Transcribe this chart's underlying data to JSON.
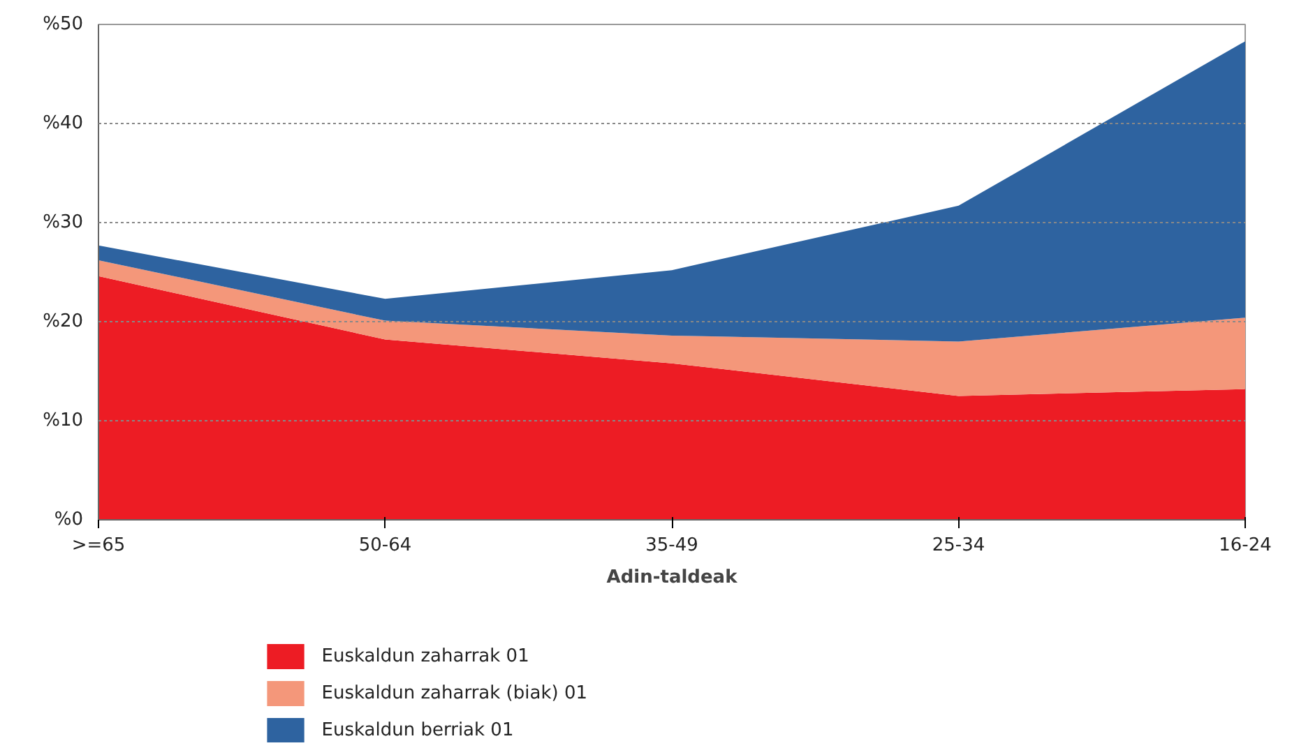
{
  "chart_data": {
    "type": "area",
    "stacked": true,
    "xlabel": "Adin-taldeak",
    "categories": [
      ">=65",
      "50-64",
      "35-49",
      "25-34",
      "16-24"
    ],
    "ylim": [
      0,
      50
    ],
    "yticks": [
      {
        "value": 0,
        "label": "%0"
      },
      {
        "value": 10,
        "label": "%10"
      },
      {
        "value": 20,
        "label": "%20"
      },
      {
        "value": 30,
        "label": "%30"
      },
      {
        "value": 40,
        "label": "%40"
      },
      {
        "value": 50,
        "label": "%50"
      }
    ],
    "grid": "y",
    "legend": "bottom",
    "series": [
      {
        "name": "Euskaldun zaharrak 01",
        "color": "#ed1c24",
        "values": [
          24.6,
          18.2,
          15.8,
          12.5,
          13.2
        ]
      },
      {
        "name": "Euskaldun zaharrak (biak) 01",
        "color": "#f4977a",
        "values": [
          1.6,
          1.9,
          2.8,
          5.5,
          7.2
        ]
      },
      {
        "name": "Euskaldun berriak 01",
        "color": "#2e63a0",
        "values": [
          1.5,
          2.2,
          6.6,
          13.7,
          27.9
        ]
      }
    ]
  }
}
